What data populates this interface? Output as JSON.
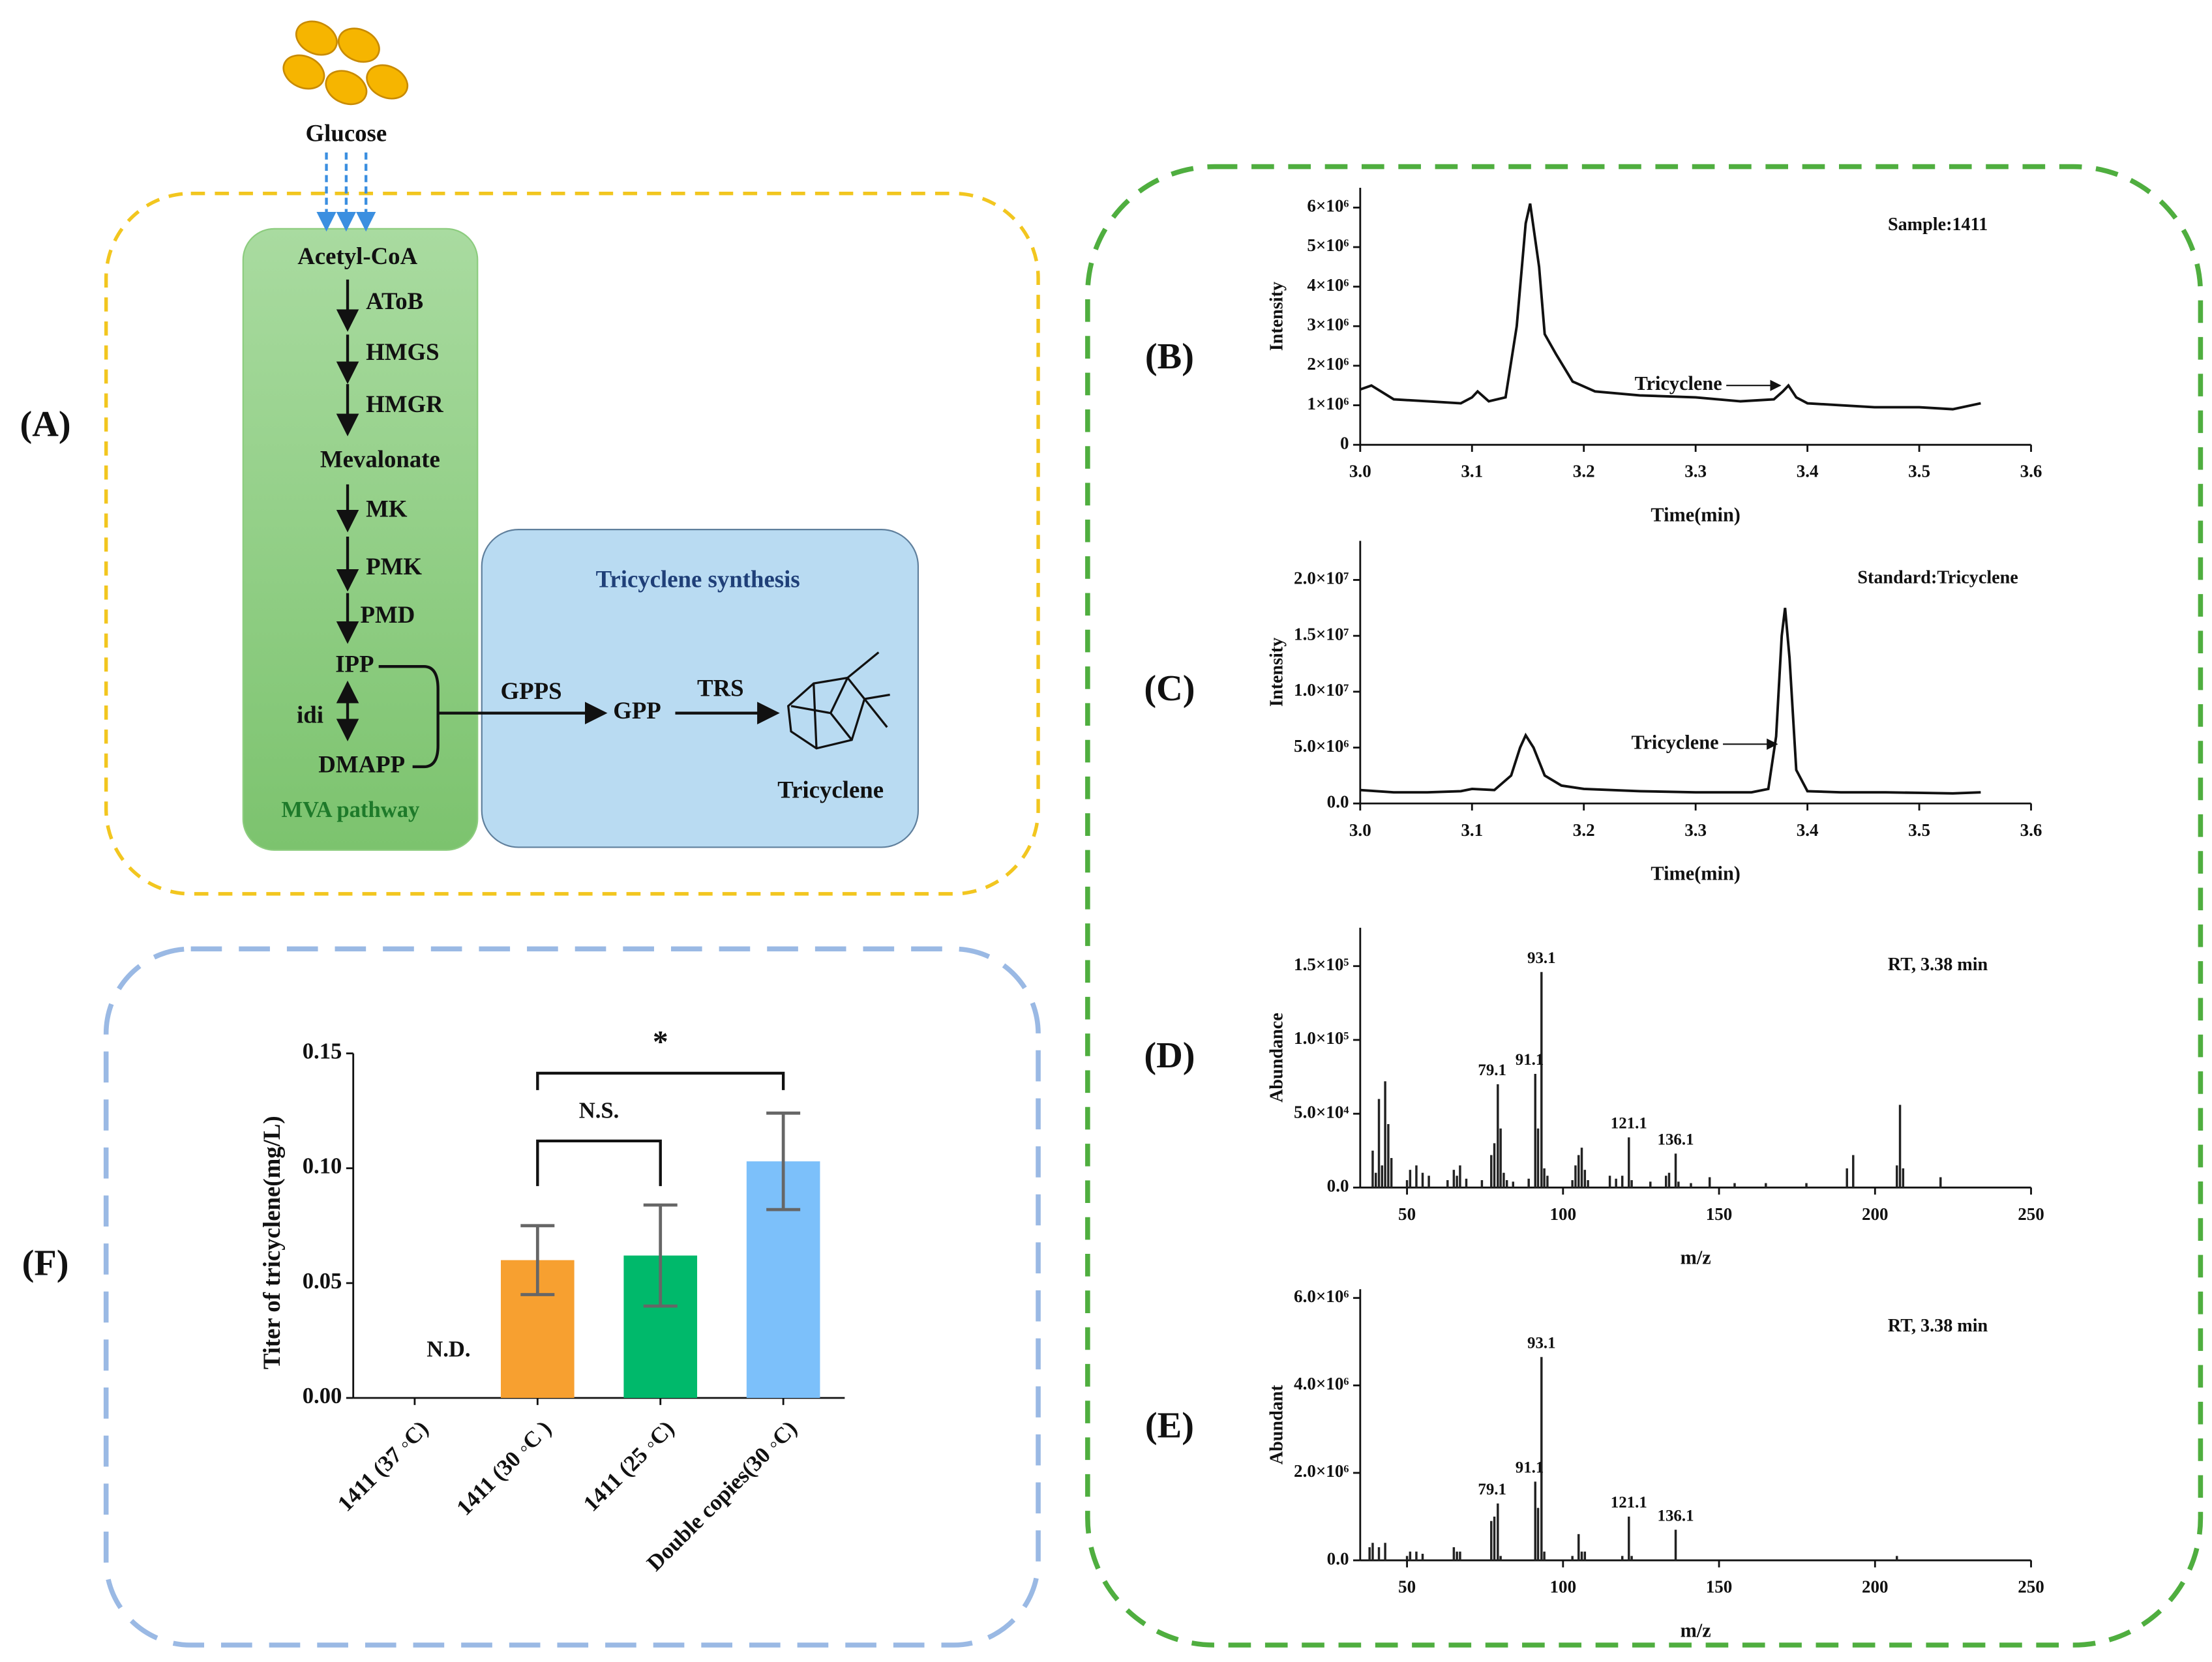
{
  "panels": [
    "(A)",
    "(B)",
    "(C)",
    "(D)",
    "(E)",
    "(F)"
  ],
  "pathway": {
    "source": "Glucose",
    "module": "MVA pathway",
    "module2": "Tricyclene synthesis",
    "metabolites": [
      "Acetyl-CoA",
      "Mevalonate",
      "IPP",
      "DMAPP",
      "GPP",
      "Tricyclene"
    ],
    "enzymes": [
      "AToB",
      "HMGS",
      "HMGR",
      "MK",
      "PMK",
      "PMD",
      "idi",
      "GPPS",
      "TRS"
    ]
  },
  "chart_data": [
    {
      "type": "line",
      "note": "Sample:1411",
      "y_label": "Intensity",
      "x_label": "Time(min)",
      "color": "#111111",
      "peak_label": "Tricyclene",
      "peak_x": 3.383,
      "x": [
        3.0,
        3.01,
        3.03,
        3.06,
        3.09,
        3.1,
        3.105,
        3.115,
        3.13,
        3.14,
        3.148,
        3.152,
        3.16,
        3.165,
        3.175,
        3.19,
        3.21,
        3.25,
        3.3,
        3.34,
        3.37,
        3.378,
        3.383,
        3.39,
        3.4,
        3.43,
        3.46,
        3.5,
        3.53,
        3.555
      ],
      "values": [
        1400000,
        1500000,
        1150000,
        1100000,
        1050000,
        1200000,
        1350000,
        1100000,
        1200000,
        3000000,
        5600000,
        6100000,
        4500000,
        2800000,
        2300000,
        1600000,
        1350000,
        1250000,
        1200000,
        1100000,
        1150000,
        1350000,
        1500000,
        1200000,
        1050000,
        1000000,
        950000,
        950000,
        900000,
        1050000
      ],
      "xlim": [
        3.0,
        3.6
      ],
      "xticks": [
        {
          "value": 3.0,
          "label": "3.0"
        },
        3.1,
        3.2,
        3.3,
        3.4,
        3.5,
        3.6
      ],
      "ylim": [
        0,
        6500000
      ],
      "yticks": [
        0,
        {
          "value": 1000000,
          "label": "1×10⁶"
        },
        {
          "value": 2000000,
          "label": "2×10⁶"
        },
        {
          "value": 3000000,
          "label": "3×10⁶"
        },
        {
          "value": 4000000,
          "label": "4×10⁶"
        },
        {
          "value": 5000000,
          "label": "5×10⁶"
        },
        {
          "value": 6000000,
          "label": "6×10⁶"
        }
      ]
    },
    {
      "type": "line",
      "note": "Standard:Tricyclene",
      "y_label": "Intensity",
      "x_label": "Time(min)",
      "color": "#111111",
      "peak_label": "Tricyclene",
      "peak_x": 3.38,
      "x": [
        3.0,
        3.03,
        3.06,
        3.09,
        3.1,
        3.12,
        3.135,
        3.143,
        3.148,
        3.155,
        3.165,
        3.18,
        3.2,
        3.25,
        3.3,
        3.35,
        3.365,
        3.372,
        3.377,
        3.38,
        3.384,
        3.39,
        3.4,
        3.43,
        3.47,
        3.5,
        3.53,
        3.555
      ],
      "values": [
        1200000,
        1000000,
        1000000,
        1100000,
        1300000,
        1200000,
        2500000,
        5000000,
        6100000,
        5000000,
        2500000,
        1600000,
        1300000,
        1100000,
        1000000,
        1000000,
        1300000,
        6000000,
        15000000,
        17500000,
        13000000,
        3000000,
        1100000,
        1000000,
        1000000,
        950000,
        900000,
        1000000
      ],
      "xlim": [
        3.0,
        3.6
      ],
      "xticks": [
        {
          "value": 3.0,
          "label": "3.0"
        },
        3.1,
        3.2,
        3.3,
        3.4,
        3.5,
        3.6
      ],
      "ylim": [
        0,
        23500000
      ],
      "yticks": [
        {
          "value": 0,
          "label": "0.0"
        },
        {
          "value": 5000000,
          "label": "5.0×10⁶"
        },
        {
          "value": 10000000,
          "label": "1.0×10⁷"
        },
        {
          "value": 15000000,
          "label": "1.5×10⁷"
        },
        {
          "value": 20000000,
          "label": "2.0×10⁷"
        }
      ]
    },
    {
      "type": "stem",
      "note": "RT, 3.38 min",
      "y_label": "Abundance",
      "x_label": "m/z",
      "color": "#222222",
      "x": [
        39,
        40,
        41,
        42,
        43,
        44,
        45,
        50,
        51,
        53,
        55,
        57,
        63,
        65,
        66,
        67,
        69,
        74,
        77,
        78,
        79.1,
        80,
        81,
        82,
        84,
        89,
        91.1,
        92,
        93.1,
        94,
        95,
        103,
        104,
        105,
        106,
        107,
        108,
        115,
        117,
        119,
        121.1,
        122,
        128,
        133,
        134,
        136.1,
        137,
        141,
        147,
        155,
        165,
        178,
        191,
        193,
        207,
        208,
        209,
        221
      ],
      "values": [
        25000,
        10000,
        60000,
        15000,
        72000,
        43000,
        20000,
        5000,
        12000,
        15000,
        10000,
        8000,
        5000,
        12000,
        8000,
        15000,
        6000,
        5000,
        22000,
        30000,
        70000,
        40000,
        10000,
        5000,
        4000,
        6000,
        77000,
        40000,
        146000,
        13000,
        8000,
        5000,
        15000,
        22000,
        27000,
        12000,
        5000,
        8000,
        6000,
        8000,
        34000,
        5000,
        4000,
        8000,
        10000,
        23000,
        4000,
        3000,
        7000,
        3000,
        3000,
        3000,
        13000,
        22000,
        15000,
        56000,
        13000,
        7000
      ],
      "peak_labels": [
        93.1,
        91.1,
        79.1,
        121.1,
        136.1
      ],
      "xlim": [
        35,
        250
      ],
      "xticks": [
        50,
        100,
        150,
        200,
        250
      ],
      "ylim": [
        0,
        176000
      ],
      "yticks": [
        {
          "value": 0,
          "label": "0.0"
        },
        {
          "value": 50000,
          "label": "5.0×10⁴"
        },
        {
          "value": 100000,
          "label": "1.0×10⁵"
        },
        {
          "value": 150000,
          "label": "1.5×10⁵"
        }
      ]
    },
    {
      "type": "stem",
      "note": "RT, 3.38 min",
      "y_label": "Abundant",
      "x_label": "m/z",
      "color": "#222222",
      "x": [
        38,
        39,
        41,
        43,
        50,
        51,
        53,
        55,
        65,
        66,
        67,
        77,
        78,
        79.1,
        80,
        91.1,
        92,
        93.1,
        94,
        103,
        105,
        106,
        107,
        119,
        121.1,
        122,
        136.1,
        207
      ],
      "values": [
        300000,
        400000,
        300000,
        400000,
        100000,
        200000,
        200000,
        150000,
        300000,
        200000,
        200000,
        900000,
        1000000,
        1300000,
        100000,
        1800000,
        1200000,
        4650000,
        200000,
        100000,
        600000,
        200000,
        200000,
        100000,
        1000000,
        100000,
        700000,
        100000
      ],
      "peak_labels": [
        93.1,
        91.1,
        79.1,
        121.1,
        136.1
      ],
      "xlim": [
        35,
        250
      ],
      "xticks": [
        50,
        100,
        150,
        200,
        250
      ],
      "ylim": [
        0,
        6200000
      ],
      "yticks": [
        {
          "value": 0,
          "label": "0.0"
        },
        {
          "value": 2000000,
          "label": "2.0×10⁶"
        },
        {
          "value": 4000000,
          "label": "4.0×10⁶"
        },
        {
          "value": 6000000,
          "label": "6.0×10⁶"
        }
      ]
    },
    {
      "type": "bar",
      "y_label": "Titer of tricyclene(mg/L)",
      "categories": [
        "1411 (37 ◦C)",
        "1411 (30 ◦C )",
        "1411 (25 ◦C)",
        "Double copies(30 ◦C)"
      ],
      "values": [
        null,
        0.06,
        0.062,
        0.103
      ],
      "errors": [
        null,
        0.015,
        0.022,
        0.021
      ],
      "colors": [
        "#f7a030",
        "#f7a030",
        "#00b96b",
        "#7cc0fa"
      ],
      "missing_label": "N.D.",
      "comparisons": [
        {
          "pair": [
            1,
            2
          ],
          "label": "N.S."
        },
        {
          "pair": [
            1,
            3
          ],
          "label": "*"
        }
      ],
      "ylim": [
        0,
        0.15
      ],
      "yticks": [
        {
          "value": 0,
          "label": "0.00"
        },
        0.05,
        {
          "value": 0.1,
          "label": "0.10"
        },
        0.15
      ]
    }
  ]
}
